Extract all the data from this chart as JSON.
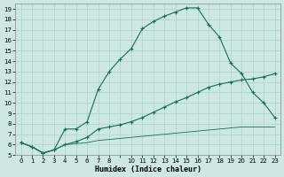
{
  "xlabel": "Humidex (Indice chaleur)",
  "bg_color": "#cce8e0",
  "grid_color": "#b0d8cc",
  "line_color": "#1a6b5a",
  "xlim": [
    -0.5,
    23.5
  ],
  "ylim": [
    5,
    19.5
  ],
  "xtick_positions": [
    0,
    1,
    2,
    3,
    4,
    5,
    6,
    7,
    8,
    9,
    10,
    11,
    12,
    13,
    14,
    15,
    16,
    17,
    18,
    19,
    20,
    21,
    22,
    23
  ],
  "xtick_labels": [
    "0",
    "1",
    "2",
    "3",
    "4",
    "5",
    "6",
    "7",
    "8",
    "",
    "10",
    "11",
    "12",
    "13",
    "14",
    "15",
    "16",
    "17",
    "18",
    "19",
    "20",
    "21",
    "22",
    "23"
  ],
  "yticks": [
    5,
    6,
    7,
    8,
    9,
    10,
    11,
    12,
    13,
    14,
    15,
    16,
    17,
    18,
    19
  ],
  "curve1_x": [
    0,
    1,
    2,
    3,
    4,
    5,
    6,
    7,
    8,
    9,
    10,
    11,
    12,
    13,
    14,
    15,
    16,
    17,
    18,
    19,
    20,
    21,
    22,
    23
  ],
  "curve1_y": [
    6.2,
    5.8,
    5.2,
    5.5,
    7.5,
    7.5,
    8.2,
    11.3,
    13.0,
    14.2,
    15.2,
    17.1,
    17.8,
    18.3,
    18.7,
    19.1,
    19.1,
    17.5,
    16.3,
    13.8,
    12.8,
    11.0,
    10.0,
    8.6
  ],
  "curve2_x": [
    0,
    1,
    2,
    3,
    4,
    5,
    6,
    7,
    8,
    9,
    10,
    11,
    12,
    13,
    14,
    15,
    16,
    17,
    18,
    19,
    20,
    21,
    22,
    23
  ],
  "curve2_y": [
    6.2,
    5.8,
    5.2,
    5.5,
    6.0,
    6.3,
    6.7,
    7.5,
    7.7,
    7.9,
    8.2,
    8.6,
    9.1,
    9.6,
    10.1,
    10.5,
    11.0,
    11.5,
    11.8,
    12.0,
    12.2,
    12.3,
    12.5,
    12.8
  ],
  "curve3_x": [
    0,
    1,
    2,
    3,
    4,
    5,
    6,
    7,
    8,
    9,
    10,
    11,
    12,
    13,
    14,
    15,
    16,
    17,
    18,
    19,
    20,
    21,
    22,
    23
  ],
  "curve3_y": [
    6.2,
    5.8,
    5.2,
    5.5,
    6.0,
    6.1,
    6.2,
    6.4,
    6.5,
    6.6,
    6.7,
    6.8,
    6.9,
    7.0,
    7.1,
    7.2,
    7.3,
    7.4,
    7.5,
    7.6,
    7.7,
    7.7,
    7.7,
    7.7
  ]
}
